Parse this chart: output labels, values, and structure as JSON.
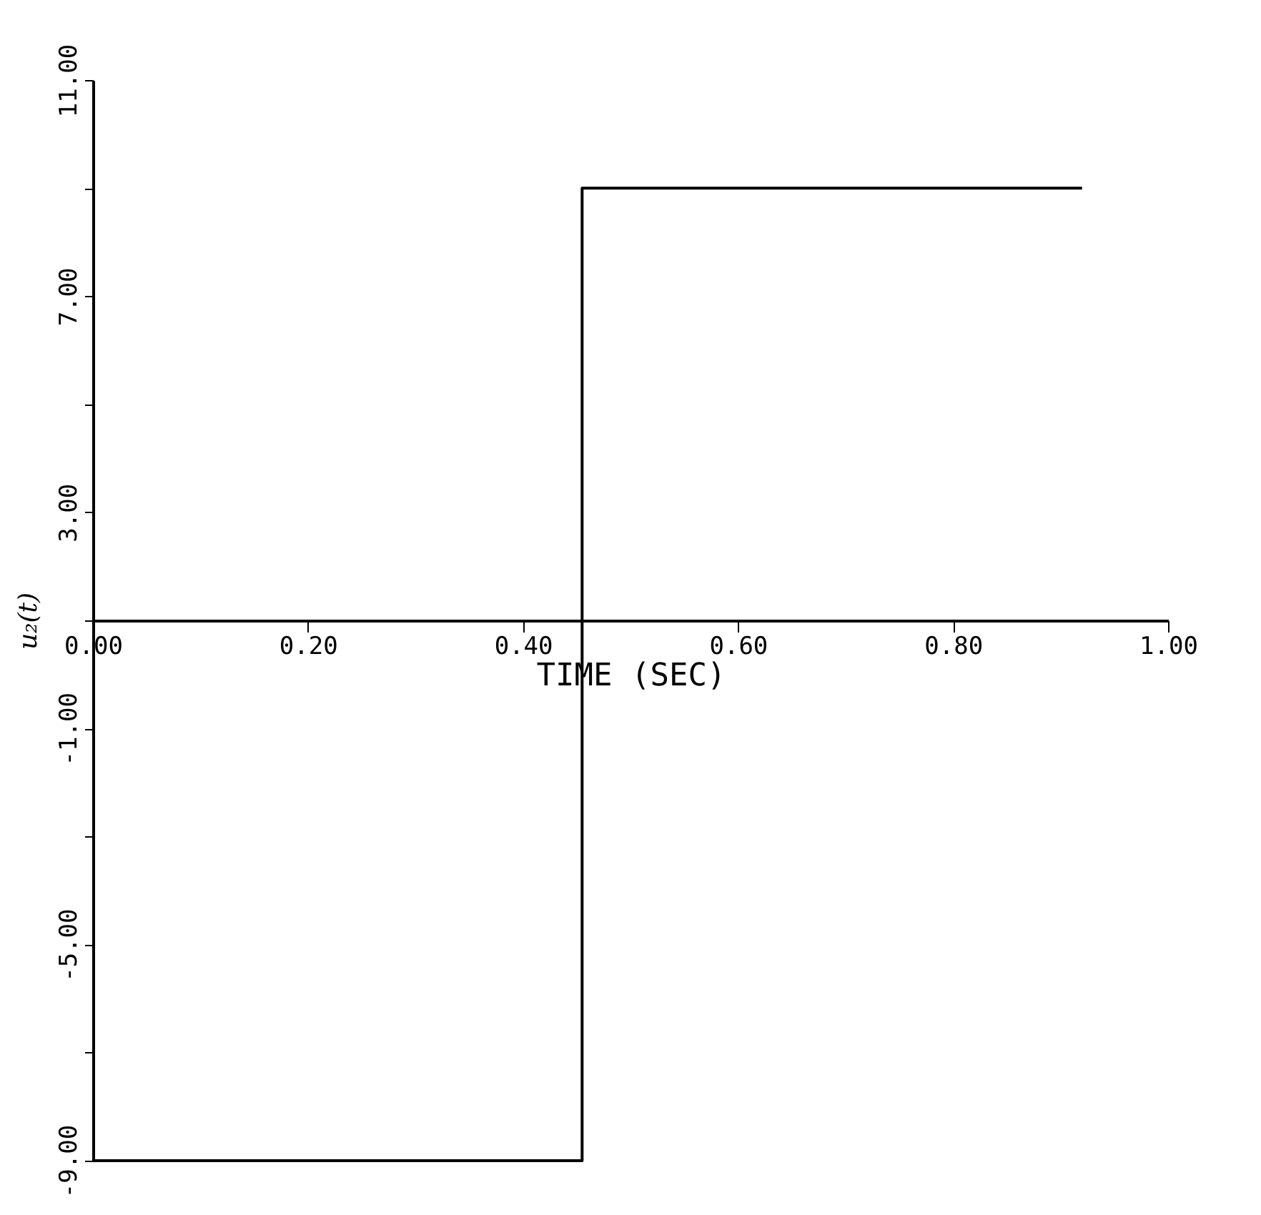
{
  "chart_data": {
    "type": "step",
    "xlabel": "TIME (SEC)",
    "ylabel": "u₂(t)",
    "x": [
      0,
      0.455,
      0.92
    ],
    "series": [
      {
        "color": "#000000",
        "values": [
          -9,
          9,
          9
        ]
      }
    ],
    "xlim": [
      0,
      1
    ],
    "ylim": [
      -9,
      11
    ],
    "xticks": [
      {
        "value": 0,
        "label": "0.00"
      },
      {
        "value": 0.2,
        "label": "0.20"
      },
      {
        "value": 0.4,
        "label": "0.40"
      },
      {
        "value": 0.6,
        "label": "0.60"
      },
      {
        "value": 0.8,
        "label": "0.80"
      },
      {
        "value": 1,
        "label": "1.00"
      }
    ],
    "yticks": [
      {
        "value": -9,
        "label": "-9.00"
      },
      {
        "value": -7,
        "label": null
      },
      {
        "value": -5,
        "label": "-5.00"
      },
      {
        "value": -3,
        "label": null
      },
      {
        "value": -1,
        "label": "-1.00"
      },
      {
        "value": 1,
        "label": null
      },
      {
        "value": 3,
        "label": "3.00"
      },
      {
        "value": 5,
        "label": null
      },
      {
        "value": 7,
        "label": "7.00"
      },
      {
        "value": 9,
        "label": null
      },
      {
        "value": 11,
        "label": "11.00"
      }
    ],
    "grid": false,
    "marker": "none",
    "line_style": "solid"
  }
}
